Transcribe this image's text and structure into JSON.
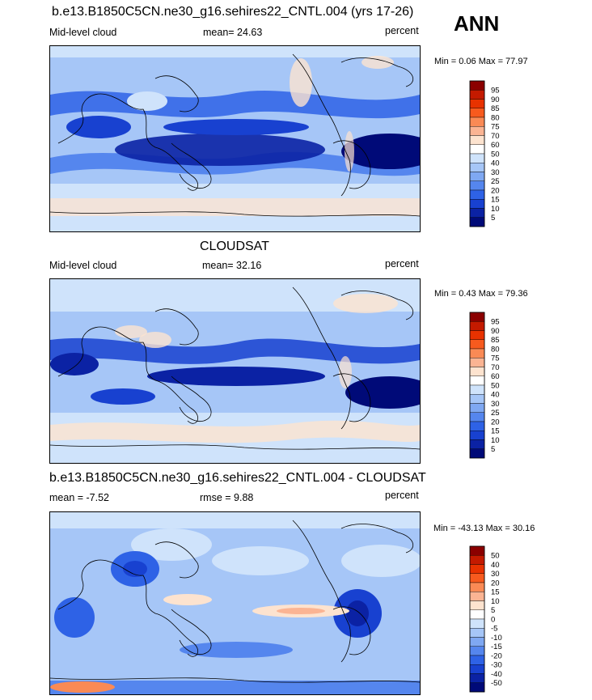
{
  "season": "ANN",
  "panels": [
    {
      "id": "model",
      "title": "b.e13.B1850C5CN.ne30_g16.sehires22_CNTL.004 (yrs 17-26)",
      "left_label": "Mid-level cloud",
      "center_label": "mean=  24.63",
      "right_label": "percent",
      "minmax": "Min =   0.06 Max =  77.97",
      "levels": [
        "95",
        "90",
        "85",
        "80",
        "75",
        "70",
        "60",
        "50",
        "40",
        "30",
        "25",
        "20",
        "15",
        "10",
        "5"
      ],
      "colors": [
        "#8b0000",
        "#c41a00",
        "#e83200",
        "#f75a1e",
        "#fa8a55",
        "#fbb493",
        "#fde3cf",
        "#ffffff",
        "#cfe3fb",
        "#a6c6f7",
        "#7fa8f2",
        "#5586ee",
        "#2e62e6",
        "#1841d0",
        "#0b22a4",
        "#000a78"
      ]
    },
    {
      "id": "obs",
      "title": "CLOUDSAT",
      "left_label": "Mid-level cloud",
      "center_label": "mean=  32.16",
      "right_label": "percent",
      "minmax": "Min =   0.43 Max =  79.36",
      "levels": [
        "95",
        "90",
        "85",
        "80",
        "75",
        "70",
        "60",
        "50",
        "40",
        "30",
        "25",
        "20",
        "15",
        "10",
        "5"
      ],
      "colors": [
        "#8b0000",
        "#c41a00",
        "#e83200",
        "#f75a1e",
        "#fa8a55",
        "#fbb493",
        "#fde3cf",
        "#ffffff",
        "#cfe3fb",
        "#a6c6f7",
        "#7fa8f2",
        "#5586ee",
        "#2e62e6",
        "#1841d0",
        "#0b22a4",
        "#000a78"
      ]
    },
    {
      "id": "diff",
      "title": "b.e13.B1850C5CN.ne30_g16.sehires22_CNTL.004 - CLOUDSAT",
      "left_label": "mean =  -7.52",
      "center_label": "rmse =    9.88",
      "right_label": "percent",
      "minmax": "Min = -43.13 Max =  30.16",
      "levels": [
        "50",
        "40",
        "30",
        "20",
        "15",
        "10",
        "5",
        "0",
        "-5",
        "-10",
        "-15",
        "-20",
        "-30",
        "-40",
        "-50"
      ],
      "colors": [
        "#8b0000",
        "#c41a00",
        "#e83200",
        "#f75a1e",
        "#fa8a55",
        "#fbb493",
        "#fde3cf",
        "#ffffff",
        "#cfe3fb",
        "#a6c6f7",
        "#7fa8f2",
        "#5586ee",
        "#2e62e6",
        "#1841d0",
        "#0b22a4",
        "#000a78"
      ]
    }
  ]
}
